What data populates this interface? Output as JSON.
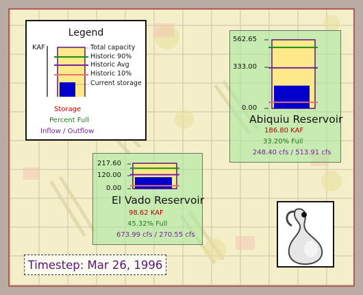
{
  "legend": {
    "title": "Legend",
    "unit": "KAF",
    "items": [
      "Total capacity",
      "Historic 90%",
      "Historic Avg",
      "Historic 10%",
      "Current storage"
    ],
    "storage_label": "Storage",
    "percent_label": "Percent Full",
    "flow_label": "Inflow / Outflow"
  },
  "reservoirs": [
    {
      "name": "Abiquiu Reservoir",
      "tick_labels": [
        "562.65",
        "333.00",
        "0.00"
      ],
      "storage": "186.80 KAF",
      "percent": "33.20% Full",
      "flow": "248.40 cfs / 513.91 cfs",
      "capacity_kaf": 562.65,
      "storage_kaf": 186.8,
      "historic_90_kaf": 500.0,
      "historic_avg_kaf": 333.0,
      "historic_10_kaf": 50.0
    },
    {
      "name": "El Vado Reservoir",
      "tick_labels": [
        "217.60",
        "120.00",
        "0.00"
      ],
      "storage": "98.62 KAF",
      "percent": "45.32% Full",
      "flow": "673.99 cfs / 270.55 cfs",
      "capacity_kaf": 217.6,
      "storage_kaf": 98.62,
      "historic_90_kaf": 175.0,
      "historic_avg_kaf": 120.0,
      "historic_10_kaf": 25.0
    }
  ],
  "timestep": "Timestep: Mar 26, 1996",
  "colors": {
    "capacity": "#fde98a",
    "historic90": "#1a8a1a",
    "historic_avg": "#7a1fa0",
    "historic10": "#e57070",
    "storage": "#0000cc",
    "panel": "#a8e8a0"
  },
  "icons": [
    "gourd-icon"
  ]
}
